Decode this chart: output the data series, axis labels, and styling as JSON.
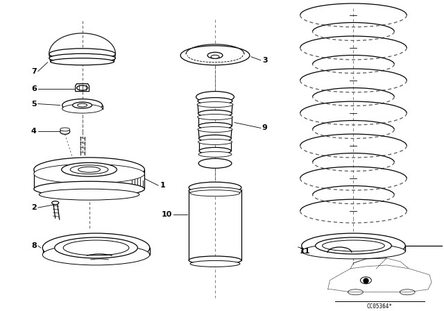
{
  "background_color": "#ffffff",
  "line_color": "#000000",
  "figsize": [
    6.4,
    4.48
  ],
  "dpi": 100,
  "watermark": "CC05364*"
}
